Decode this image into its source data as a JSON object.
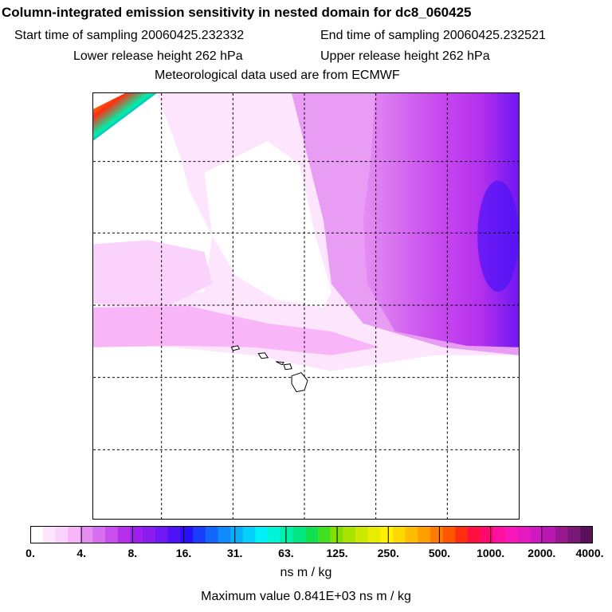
{
  "header": {
    "title": "Column-integrated emission sensitivity in nested domain for dc8_060425",
    "start": "Start time of sampling 20060425.232332",
    "end": "End time of sampling 20060425.232521",
    "lower": "Lower release height  262 hPa",
    "upper": "Upper release height  262 hPa",
    "met": "Meteorological data used are from ECMWF"
  },
  "colorbar": {
    "ticks": [
      "0.",
      "4.",
      "8.",
      "16.",
      "31.",
      "63.",
      "125.",
      "250.",
      "500.",
      "1000.",
      "2000.",
      "4000."
    ],
    "colors": [
      "#ffffff",
      "#fde6fd",
      "#fbd2fb",
      "#f8b6f8",
      "#e48ef2",
      "#d76ff0",
      "#c94eee",
      "#b630ee",
      "#9f20ee",
      "#8a1cf0",
      "#6f18f3",
      "#4d12f6",
      "#2a10f8",
      "#1a3cfb",
      "#1166fb",
      "#0e8afb",
      "#0aaefb",
      "#05d0fb",
      "#00f0f8",
      "#00f4d8",
      "#00f0a8",
      "#00e680",
      "#10e050",
      "#40e020",
      "#80e000",
      "#a8e400",
      "#cce800",
      "#e8ec00",
      "#fff000",
      "#ffd800",
      "#ffbc00",
      "#ff9e00",
      "#ff7a00",
      "#ff5600",
      "#ff2e10",
      "#ff1040",
      "#ff0870",
      "#ff10a0",
      "#f818b8",
      "#e618c0",
      "#d018c0",
      "#b818b0",
      "#981890",
      "#7a1878",
      "#5a1058"
    ],
    "units": "ns m / kg",
    "max_value": "Maximum value  0.841E+03 ns m / kg"
  }
}
